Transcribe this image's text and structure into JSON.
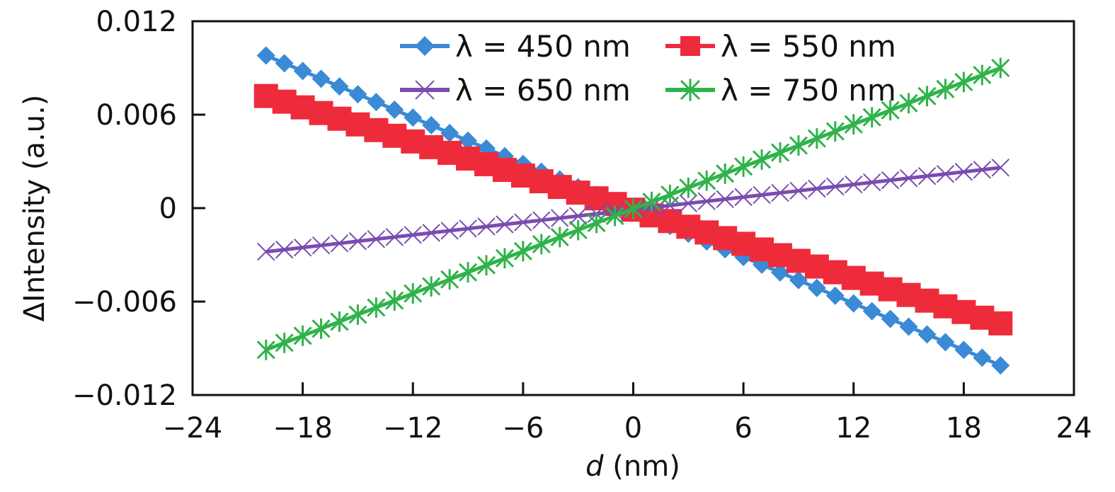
{
  "chart_data": {
    "type": "line",
    "title": "",
    "xlabel": "d (nm)",
    "ylabel": "ΔIntensity (a.u.)",
    "xlim": [
      -24,
      24
    ],
    "ylim": [
      -0.012,
      0.012
    ],
    "xticks": [
      -24,
      -18,
      -12,
      -6,
      0,
      6,
      12,
      18,
      24
    ],
    "xtick_labels": [
      "−24",
      "−18",
      "−12",
      "−6",
      "0",
      "6",
      "12",
      "18",
      "24"
    ],
    "yticks": [
      -0.012,
      -0.006,
      0,
      0.006,
      0.012
    ],
    "ytick_labels": [
      "−0.012",
      "−0.006",
      "0",
      "0.006",
      "0.012"
    ],
    "legend_position": "top",
    "x_range": [
      -20,
      20,
      1
    ],
    "series": [
      {
        "name": "λ = 450 nm",
        "color": "#3a8ad6",
        "marker": "diamond",
        "y_at_min": 0.0098,
        "y_at_max": -0.0101
      },
      {
        "name": "λ = 550 nm",
        "color": "#ee2b3b",
        "marker": "square",
        "y_at_min": 0.0072,
        "y_at_max": -0.0074
      },
      {
        "name": "λ = 650 nm",
        "color": "#7a4bb0",
        "marker": "x",
        "y_at_min": -0.0028,
        "y_at_max": 0.0026
      },
      {
        "name": "λ = 750 nm",
        "color": "#2fb34a",
        "marker": "star",
        "y_at_min": -0.0091,
        "y_at_max": 0.009
      }
    ]
  }
}
